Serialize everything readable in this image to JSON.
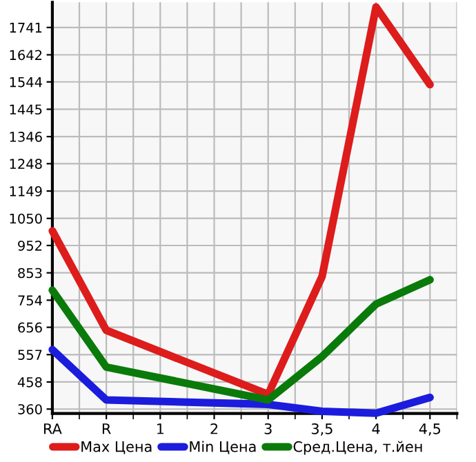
{
  "chart_data": {
    "type": "line",
    "categories": [
      "RA",
      "R",
      "1",
      "2",
      "3",
      "3,5",
      "4",
      "4,5"
    ],
    "series": [
      {
        "name": "Max Цена",
        "color": "#dd1c1c",
        "values": [
          1005,
          645,
          null,
          null,
          413,
          840,
          1815,
          1534
        ]
      },
      {
        "name": "Min Цена",
        "color": "#1c1cdd",
        "values": [
          575,
          393,
          null,
          null,
          377,
          352,
          345,
          402
        ]
      },
      {
        "name": "Сред.Цена, т.йен",
        "color": "#0a7a0a",
        "values": [
          790,
          512,
          null,
          null,
          393,
          550,
          740,
          828
        ]
      }
    ],
    "ylim": [
      344,
      1832
    ],
    "yticks": [
      360,
      458,
      557,
      656,
      754,
      853,
      952,
      1050,
      1149,
      1248,
      1346,
      1445,
      1544,
      1642,
      1741
    ],
    "grid": true,
    "legend": "bottom",
    "marker": "none",
    "line_style": "solid"
  }
}
